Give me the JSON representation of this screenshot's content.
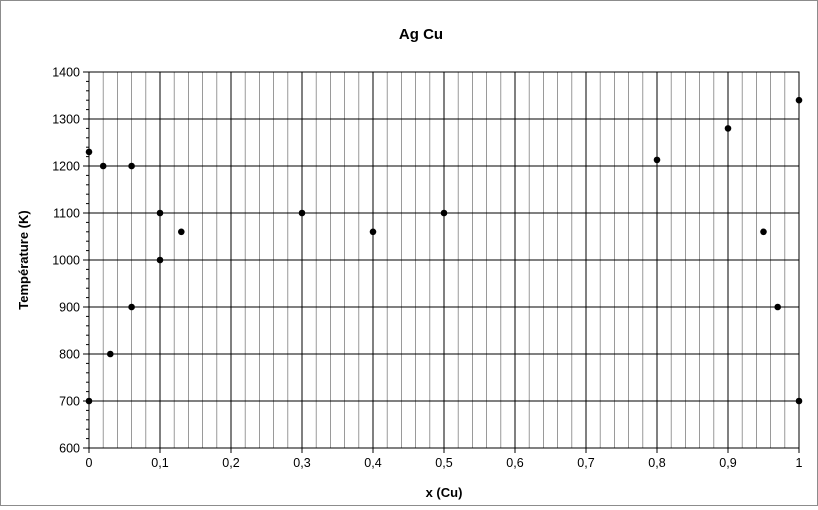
{
  "chart_data": {
    "type": "scatter",
    "title": "Ag Cu",
    "xlabel": "x (Cu)",
    "ylabel": "Température (K)",
    "xlim": [
      0,
      1
    ],
    "ylim": [
      600,
      1400
    ],
    "x_major_step": 0.1,
    "x_minor_step": 0.02,
    "y_major_step": 100,
    "y_minor_step": 20,
    "x_tick_labels": [
      "0",
      "0,1",
      "0,2",
      "0,3",
      "0,4",
      "0,5",
      "0,6",
      "0,7",
      "0,8",
      "0,9",
      "1"
    ],
    "y_tick_labels": [
      "600",
      "700",
      "800",
      "900",
      "1000",
      "1100",
      "1200",
      "1300",
      "1400"
    ],
    "grid": "on",
    "legend": "none",
    "series": [
      {
        "marker_color": "#000000",
        "points": [
          {
            "x": 0,
            "y": 1230
          },
          {
            "x": 0,
            "y": 700
          },
          {
            "x": 0.02,
            "y": 1200
          },
          {
            "x": 0.03,
            "y": 800
          },
          {
            "x": 0.06,
            "y": 1200
          },
          {
            "x": 0.06,
            "y": 900
          },
          {
            "x": 0.1,
            "y": 1100
          },
          {
            "x": 0.1,
            "y": 1000
          },
          {
            "x": 0.13,
            "y": 1060
          },
          {
            "x": 0.3,
            "y": 1100
          },
          {
            "x": 0.4,
            "y": 1060
          },
          {
            "x": 0.5,
            "y": 1100
          },
          {
            "x": 0.8,
            "y": 1213
          },
          {
            "x": 0.9,
            "y": 1280
          },
          {
            "x": 0.95,
            "y": 1060
          },
          {
            "x": 0.97,
            "y": 900
          },
          {
            "x": 1,
            "y": 1340
          },
          {
            "x": 1,
            "y": 700
          }
        ]
      }
    ]
  }
}
